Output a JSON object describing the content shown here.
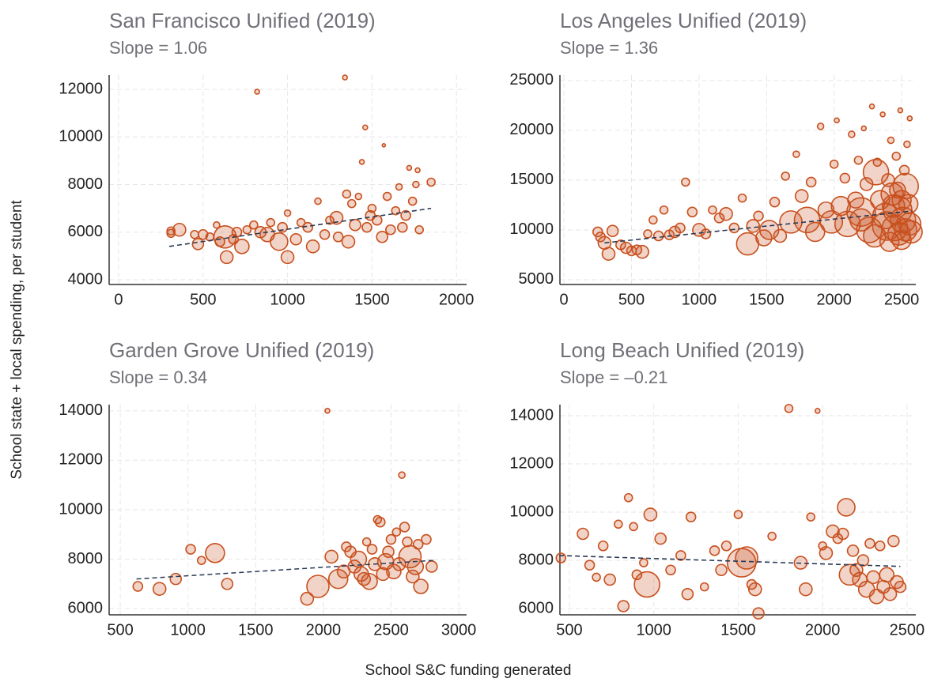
{
  "ylabel": "School state + local spending, per student",
  "xlabel": "School S&C funding generated",
  "chart_data": [
    {
      "type": "scatter",
      "title": "San Francisco Unified (2019)",
      "subtitle": "Slope = 1.06",
      "color": "#c8501e",
      "x": [
        310,
        310,
        360,
        450,
        470,
        500,
        540,
        580,
        600,
        630,
        640,
        680,
        700,
        730,
        760,
        800,
        820,
        840,
        880,
        900,
        950,
        970,
        1000,
        1000,
        1050,
        1080,
        1120,
        1150,
        1180,
        1220,
        1250,
        1290,
        1300,
        1340,
        1350,
        1360,
        1380,
        1400,
        1420,
        1440,
        1460,
        1470,
        1490,
        1500,
        1530,
        1560,
        1570,
        1590,
        1610,
        1640,
        1660,
        1680,
        1700,
        1720,
        1740,
        1760,
        1770,
        1780,
        1850
      ],
      "values": [
        5950,
        6050,
        6100,
        5900,
        5500,
        5900,
        5800,
        6300,
        5600,
        5800,
        4950,
        5700,
        6000,
        5400,
        6100,
        6300,
        11900,
        6000,
        5900,
        6400,
        5600,
        6200,
        4950,
        6800,
        5700,
        6400,
        6200,
        5400,
        7300,
        5900,
        6500,
        6600,
        5800,
        12500,
        7600,
        5600,
        7200,
        6300,
        7500,
        8950,
        10400,
        6200,
        6700,
        7000,
        6500,
        5800,
        9650,
        7500,
        6100,
        6900,
        7900,
        6200,
        6700,
        8700,
        7300,
        8000,
        8600,
        6100,
        8100
      ],
      "sizes": [
        5,
        5,
        8,
        5,
        7,
        6,
        5,
        4,
        6,
        14,
        8,
        6,
        6,
        9,
        5,
        5,
        3,
        7,
        9,
        5,
        11,
        6,
        8,
        4,
        7,
        5,
        6,
        8,
        4,
        6,
        5,
        8,
        6,
        3,
        5,
        8,
        5,
        7,
        4,
        3,
        3,
        6,
        6,
        5,
        6,
        7,
        2,
        5,
        6,
        5,
        4,
        6,
        6,
        3,
        5,
        4,
        3,
        5,
        5
      ],
      "trend": {
        "x": [
          300,
          1850
        ],
        "y": [
          5400,
          7000
        ]
      },
      "xlim": [
        -56,
        2060
      ],
      "ylim": [
        3800,
        12600
      ],
      "xticks": [
        0,
        500,
        1000,
        1500,
        2000
      ],
      "yticks": [
        4000,
        6000,
        8000,
        10000,
        12000
      ]
    },
    {
      "type": "scatter",
      "title": "Los Angeles Unified (2019)",
      "subtitle": "Slope = 1.36",
      "color": "#c8501e",
      "x": [
        250,
        270,
        300,
        330,
        360,
        420,
        460,
        500,
        540,
        580,
        620,
        660,
        700,
        740,
        780,
        820,
        860,
        900,
        950,
        1000,
        1050,
        1100,
        1150,
        1200,
        1260,
        1320,
        1360,
        1400,
        1440,
        1480,
        1520,
        1560,
        1600,
        1640,
        1680,
        1720,
        1760,
        1800,
        1830,
        1860,
        1900,
        1940,
        1980,
        2000,
        2020,
        2050,
        2080,
        2100,
        2130,
        2160,
        2180,
        2200,
        2220,
        2240,
        2260,
        2280,
        2300,
        2320,
        2340,
        2360,
        2380,
        2400,
        2410,
        2420,
        2440,
        2450,
        2460,
        2470,
        2480,
        2490,
        2500,
        2510,
        2520,
        2530,
        2540,
        2550,
        2560,
        2570,
        2200,
        2310,
        2390,
        2430,
        2470,
        2500,
        2530,
        2560
      ],
      "values": [
        9800,
        9300,
        8700,
        7600,
        9900,
        8500,
        8200,
        7900,
        8000,
        7800,
        9600,
        11000,
        9400,
        12000,
        9500,
        9800,
        10200,
        14800,
        11800,
        10000,
        9600,
        12000,
        11200,
        11600,
        10200,
        13200,
        8600,
        10400,
        11400,
        9200,
        10000,
        12800,
        9400,
        15400,
        10800,
        17600,
        13400,
        11000,
        14800,
        9800,
        20400,
        12000,
        10800,
        16600,
        21000,
        12400,
        15200,
        10600,
        19600,
        13000,
        17000,
        11000,
        20200,
        14600,
        10000,
        22400,
        9400,
        16800,
        13000,
        21600,
        11400,
        15000,
        8800,
        19000,
        12400,
        10200,
        17400,
        14000,
        9600,
        22000,
        13000,
        11000,
        16000,
        10000,
        18600,
        12600,
        21200,
        9800,
        11800,
        15800,
        10400,
        13600,
        12000,
        9000,
        14400,
        10600
      ],
      "sizes": [
        6,
        6,
        8,
        8,
        7,
        6,
        7,
        6,
        6,
        8,
        5,
        5,
        6,
        5,
        6,
        7,
        6,
        5,
        6,
        8,
        6,
        5,
        6,
        8,
        6,
        5,
        14,
        8,
        6,
        10,
        12,
        6,
        8,
        5,
        14,
        4,
        8,
        16,
        6,
        12,
        4,
        10,
        14,
        5,
        3,
        12,
        6,
        16,
        4,
        10,
        5,
        14,
        3,
        8,
        16,
        3,
        14,
        5,
        12,
        3,
        16,
        8,
        12,
        4,
        14,
        16,
        5,
        10,
        14,
        3,
        12,
        16,
        6,
        14,
        4,
        12,
        3,
        14,
        18,
        16,
        18,
        14,
        18,
        12,
        16,
        14
      ],
      "trend": {
        "x": [
          300,
          2580
        ],
        "y": [
          8700,
          11900
        ]
      },
      "xlim": [
        -30,
        2605
      ],
      "ylim": [
        4520,
        25550
      ],
      "xticks": [
        0,
        500,
        1000,
        1500,
        2000,
        2500
      ],
      "yticks": [
        5000,
        10000,
        15000,
        20000,
        25000
      ]
    },
    {
      "type": "scatter",
      "title": "Garden Grove Unified (2019)",
      "subtitle": "Slope = 0.34",
      "color": "#c8501e",
      "x": [
        630,
        790,
        910,
        1020,
        1100,
        1200,
        1290,
        1880,
        1960,
        2030,
        2060,
        2110,
        2150,
        2170,
        2200,
        2230,
        2260,
        2280,
        2300,
        2320,
        2340,
        2360,
        2380,
        2400,
        2420,
        2440,
        2460,
        2480,
        2500,
        2520,
        2540,
        2560,
        2580,
        2600,
        2620,
        2640,
        2660,
        2680,
        2700,
        2720,
        2760,
        2800
      ],
      "values": [
        6900,
        6800,
        7200,
        8400,
        7950,
        8250,
        7000,
        6400,
        6900,
        14000,
        8100,
        7200,
        7500,
        8500,
        8300,
        7700,
        8000,
        7400,
        7200,
        8700,
        7100,
        8400,
        7800,
        9600,
        9500,
        7400,
        7900,
        8300,
        8800,
        7500,
        9100,
        7800,
        11400,
        9300,
        8700,
        8100,
        7300,
        7700,
        8600,
        6900,
        8800,
        7700
      ],
      "sizes": [
        6,
        8,
        7,
        6,
        5,
        12,
        7,
        8,
        14,
        3,
        8,
        12,
        8,
        6,
        7,
        8,
        10,
        9,
        8,
        5,
        10,
        6,
        8,
        5,
        6,
        8,
        10,
        7,
        6,
        9,
        5,
        8,
        4,
        6,
        6,
        14,
        8,
        10,
        6,
        9,
        6,
        7
      ],
      "trend": {
        "x": [
          620,
          2810
        ],
        "y": [
          7200,
          7950
        ]
      },
      "xlim": [
        418,
        3058
      ],
      "ylim": [
        5750,
        14250
      ],
      "xticks": [
        500,
        1000,
        1500,
        2000,
        2500,
        3000
      ],
      "yticks": [
        6000,
        8000,
        10000,
        12000,
        14000
      ]
    },
    {
      "type": "scatter",
      "title": "Long Beach Unified (2019)",
      "subtitle": "Slope = –0.21",
      "color": "#c8501e",
      "x": [
        450,
        580,
        620,
        660,
        700,
        740,
        790,
        820,
        850,
        880,
        900,
        940,
        960,
        980,
        1040,
        1100,
        1160,
        1200,
        1220,
        1300,
        1360,
        1400,
        1430,
        1500,
        1520,
        1550,
        1580,
        1600,
        1620,
        1700,
        1800,
        1870,
        1900,
        1930,
        1970,
        2000,
        2020,
        2060,
        2090,
        2120,
        2140,
        2160,
        2180,
        2200,
        2220,
        2240,
        2260,
        2280,
        2300,
        2320,
        2340,
        2360,
        2380,
        2400,
        2420,
        2440,
        2460
      ],
      "values": [
        8100,
        9100,
        7800,
        7300,
        8600,
        7200,
        9500,
        6100,
        10600,
        9400,
        7400,
        7900,
        7000,
        9900,
        8900,
        7600,
        8200,
        6600,
        9800,
        6900,
        8400,
        7600,
        8600,
        9900,
        7900,
        8100,
        7000,
        6800,
        5800,
        9000,
        14300,
        7900,
        6800,
        9800,
        14200,
        8600,
        8300,
        9200,
        8900,
        9100,
        10200,
        7400,
        8400,
        7600,
        7200,
        8000,
        6800,
        8700,
        7300,
        6500,
        8600,
        6900,
        7400,
        6600,
        8800,
        7100,
        6900
      ],
      "sizes": [
        6,
        7,
        6,
        5,
        6,
        7,
        5,
        7,
        5,
        5,
        6,
        5,
        16,
        8,
        7,
        6,
        6,
        7,
        6,
        5,
        6,
        7,
        6,
        5,
        18,
        14,
        6,
        8,
        7,
        5,
        5,
        8,
        8,
        5,
        3,
        5,
        8,
        8,
        6,
        7,
        11,
        13,
        7,
        8,
        9,
        7,
        10,
        6,
        8,
        9,
        6,
        8,
        9,
        8,
        7,
        8,
        7
      ],
      "trend": {
        "x": [
          440,
          2460
        ],
        "y": [
          8200,
          7750
        ]
      },
      "xlim": [
        444,
        2552
      ],
      "ylim": [
        5740,
        14460
      ],
      "xticks": [
        500,
        1000,
        1500,
        2000,
        2500
      ],
      "yticks": [
        6000,
        8000,
        10000,
        12000,
        14000
      ]
    }
  ]
}
